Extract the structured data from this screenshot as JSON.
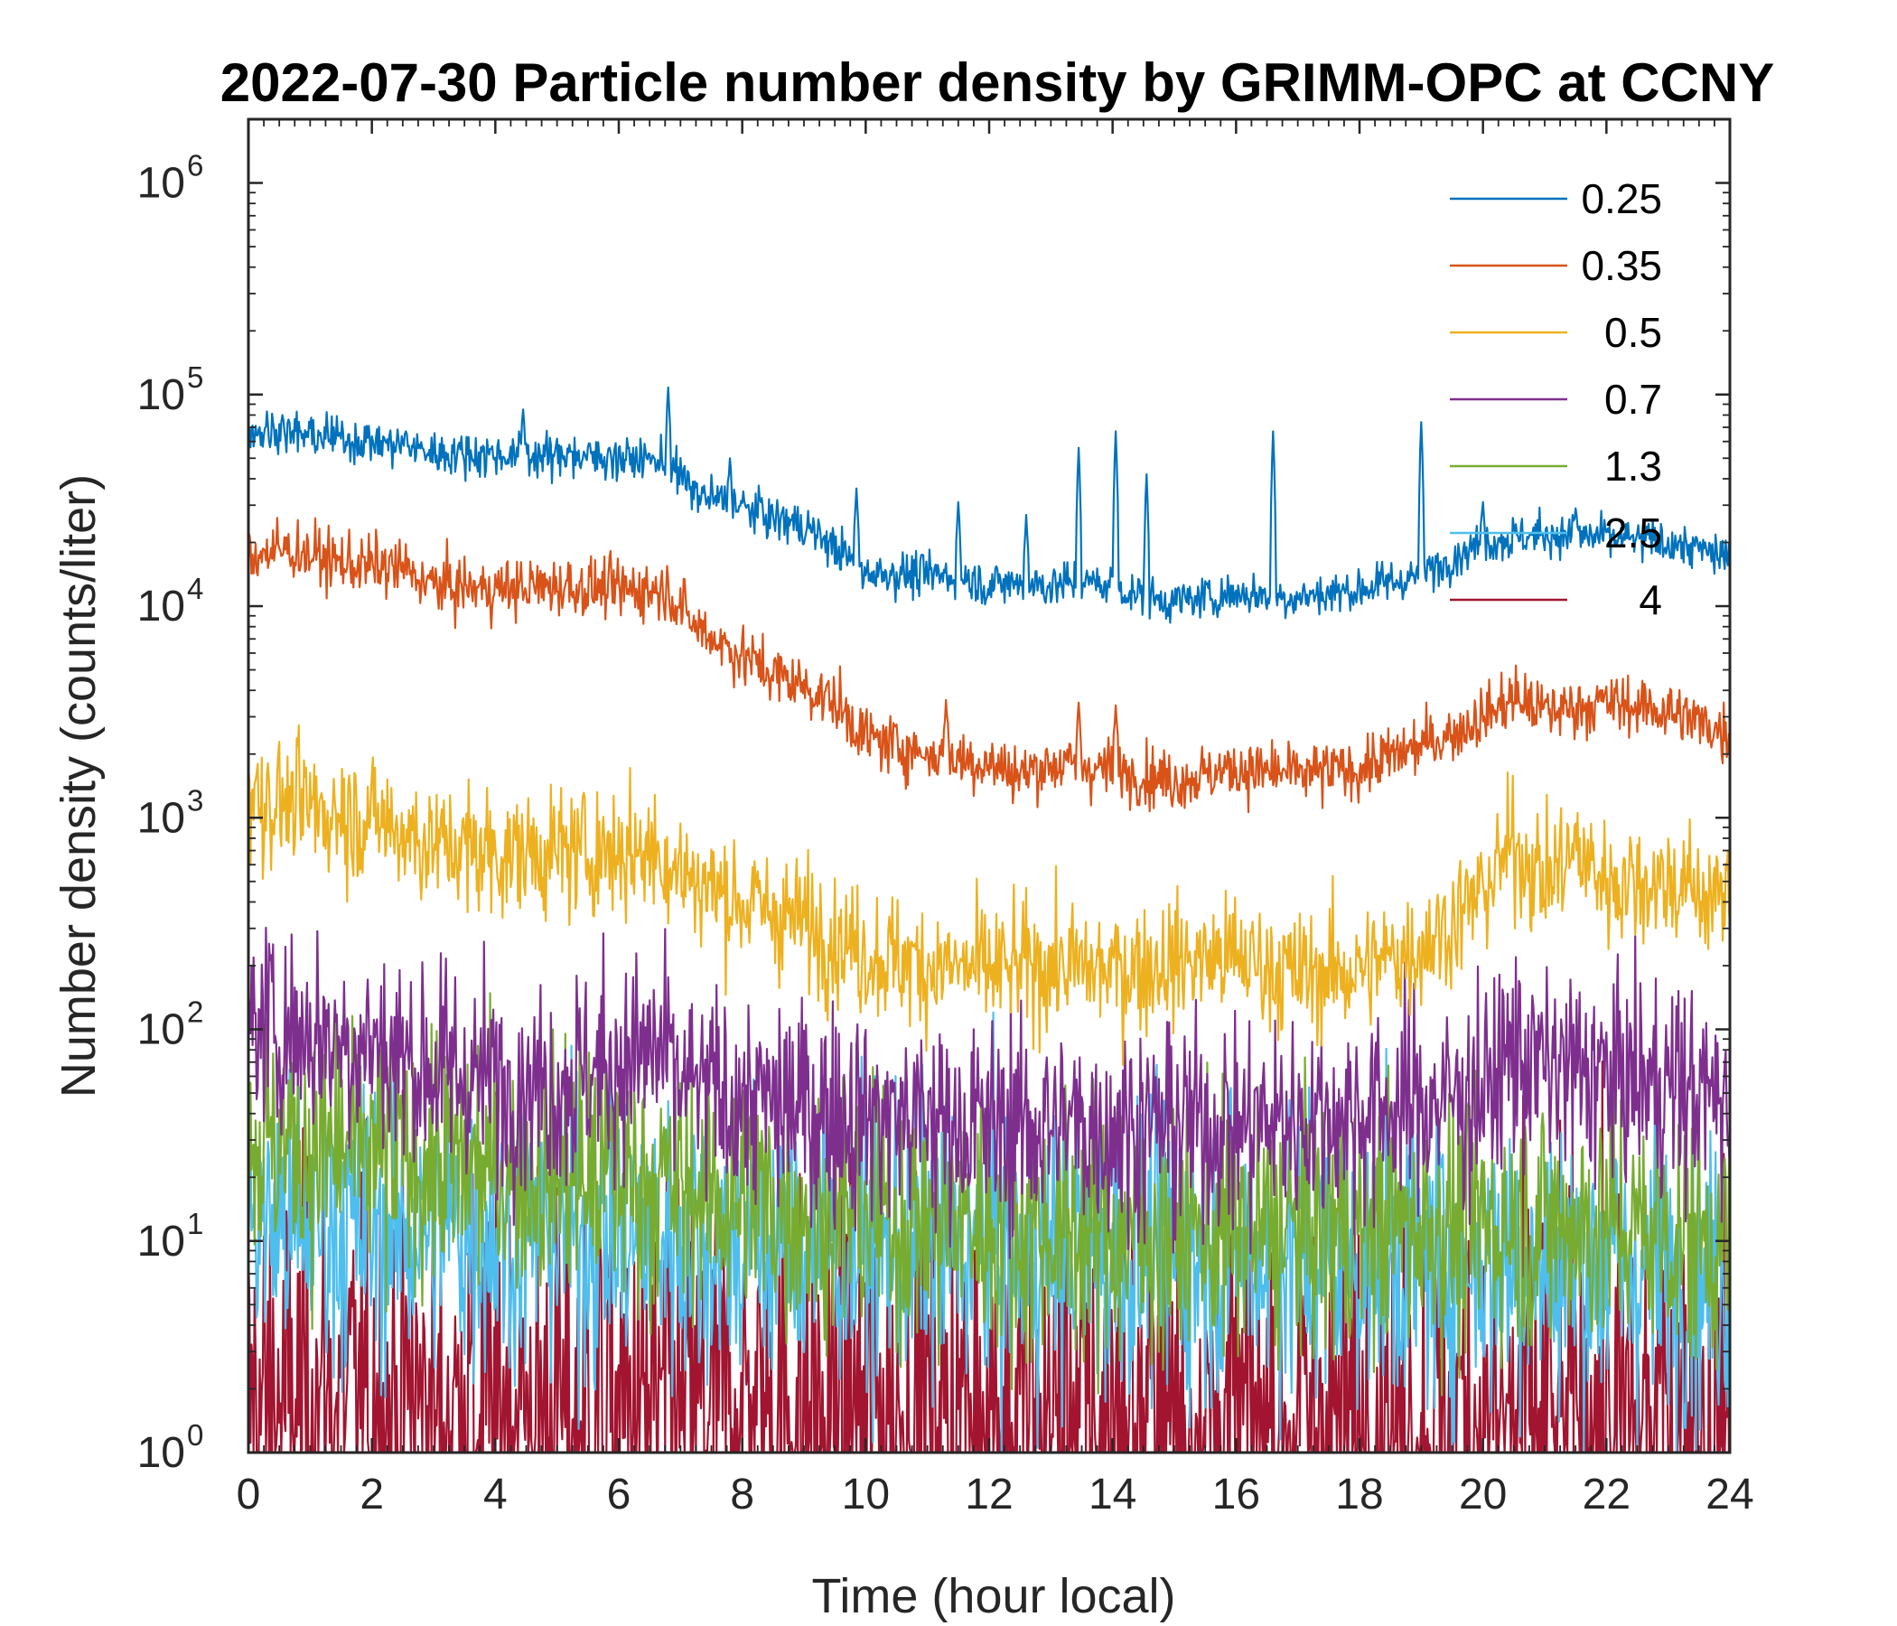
{
  "chart_data": {
    "type": "line",
    "title": "2022-07-30 Particle number density by GRIMM-OPC at CCNY",
    "xlabel": "Time (hour local)",
    "ylabel": "Number density (counts/liter)",
    "xlim": [
      0,
      24
    ],
    "ylim": [
      1,
      2000000
    ],
    "yscale": "log",
    "xticks": [
      0,
      2,
      4,
      6,
      8,
      10,
      12,
      14,
      16,
      18,
      20,
      22,
      24
    ],
    "xtick_labels": [
      "0",
      "2",
      "4",
      "6",
      "8",
      "10",
      "12",
      "14",
      "16",
      "18",
      "20",
      "22",
      "24"
    ],
    "yticks": [
      1,
      10,
      100,
      1000,
      10000,
      100000,
      1000000
    ],
    "ytick_labels": [
      {
        "base": "10",
        "exp": "0"
      },
      {
        "base": "10",
        "exp": "1"
      },
      {
        "base": "10",
        "exp": "2"
      },
      {
        "base": "10",
        "exp": "3"
      },
      {
        "base": "10",
        "exp": "4"
      },
      {
        "base": "10",
        "exp": "5"
      },
      {
        "base": "10",
        "exp": "6"
      }
    ],
    "legend_position": "top-right",
    "series": [
      {
        "name": "0.25",
        "label": "0.25",
        "color": "#0072BD",
        "x": [
          0,
          0.5,
          1,
          2,
          2.5,
          3,
          4,
          5,
          6,
          6.6,
          6.9,
          7.3,
          7.8,
          8.3,
          9,
          9.5,
          10,
          11,
          11.5,
          12,
          12.5,
          13,
          13.5,
          14,
          14.5,
          15,
          16,
          17,
          18,
          19,
          19.5,
          20,
          21,
          22,
          23,
          24
        ],
        "values": [
          68000,
          66000,
          64000,
          60000,
          57000,
          53000,
          52000,
          51000,
          50000,
          49000,
          44000,
          33000,
          31000,
          27000,
          24000,
          19000,
          14500,
          14000,
          14000,
          12500,
          13000,
          12500,
          13000,
          12500,
          11000,
          10500,
          11500,
          11000,
          12000,
          14000,
          17000,
          20000,
          22000,
          21000,
          20000,
          17000
        ],
        "noise": 0.05,
        "spikes": [
          [
            0.55,
            80000
          ],
          [
            2.55,
            67000
          ],
          [
            4.45,
            85000
          ],
          [
            5.2,
            58000
          ],
          [
            5.85,
            56000
          ],
          [
            6.8,
            108000
          ],
          [
            7.8,
            50000
          ],
          [
            8.3,
            31000
          ],
          [
            9.85,
            36000
          ],
          [
            11.5,
            31000
          ],
          [
            12.6,
            27000
          ],
          [
            13.45,
            56000
          ],
          [
            14.05,
            67000
          ],
          [
            14.55,
            42000
          ],
          [
            16.6,
            67000
          ],
          [
            19,
            74000
          ],
          [
            20,
            31000
          ],
          [
            21.5,
            29000
          ]
        ]
      },
      {
        "name": "0.35",
        "label": "0.35",
        "color": "#D95319",
        "x": [
          0,
          0.7,
          1.5,
          2,
          2.5,
          3,
          4,
          5,
          6,
          6.8,
          7.2,
          8,
          8.5,
          9,
          9.5,
          10,
          11,
          12,
          12.5,
          13,
          14,
          15,
          16,
          17,
          18,
          19,
          19.5,
          20,
          20.5,
          21,
          22,
          23,
          24
        ],
        "values": [
          17500,
          18500,
          16000,
          15500,
          15000,
          12500,
          12000,
          12500,
          12000,
          12000,
          8200,
          5800,
          4800,
          4200,
          3500,
          2400,
          2000,
          1800,
          1600,
          1800,
          1700,
          1500,
          1700,
          1600,
          1700,
          2200,
          2500,
          3000,
          3700,
          3200,
          3500,
          3200,
          2500
        ],
        "noise": 0.07,
        "spikes": [
          [
            11.3,
            3600
          ],
          [
            13.45,
            3500
          ],
          [
            14.05,
            3400
          ]
        ]
      },
      {
        "name": "0.5",
        "label": "0.5",
        "color": "#EDB120",
        "x": [
          0,
          1,
          2,
          3,
          4,
          5,
          6,
          6.6,
          7,
          8,
          9,
          10,
          11,
          12,
          13,
          14,
          15,
          16,
          17,
          18,
          19,
          19.5,
          20,
          20.5,
          21,
          21.5,
          22,
          23,
          24
        ],
        "values": [
          1300,
          1100,
          1000,
          750,
          680,
          680,
          700,
          700,
          550,
          400,
          320,
          230,
          200,
          190,
          200,
          190,
          210,
          220,
          180,
          190,
          250,
          320,
          450,
          750,
          500,
          700,
          500,
          500,
          400
        ],
        "noise": 0.15,
        "spikes": []
      },
      {
        "name": "0.7",
        "label": "0.7",
        "color": "#7E2F8E",
        "x": [
          0,
          1,
          2,
          3,
          4,
          5,
          6,
          6.6,
          7,
          8,
          10,
          12,
          14,
          16,
          18,
          19,
          20,
          20.5,
          21,
          22,
          23,
          24
        ],
        "values": [
          110,
          95,
          85,
          65,
          58,
          55,
          70,
          80,
          55,
          45,
          40,
          35,
          35,
          35,
          40,
          45,
          50,
          80,
          65,
          60,
          55,
          45
        ],
        "noise": 0.25,
        "spikes": []
      },
      {
        "name": "1.3",
        "label": "1.3",
        "color": "#77AC30",
        "x": [
          0,
          2,
          4,
          6,
          8,
          10,
          12,
          14,
          16,
          18,
          20,
          22,
          24
        ],
        "values": [
          30,
          25,
          22,
          20,
          16,
          13,
          12,
          11,
          11,
          12,
          12,
          12,
          10
        ],
        "noise": 0.3,
        "spikes": []
      },
      {
        "name": "2.5",
        "label": "2.5",
        "color": "#4DBEEE",
        "x": [
          0,
          4,
          8,
          12,
          16,
          20,
          24
        ],
        "values": [
          12,
          11,
          10,
          9,
          8.5,
          8,
          7
        ],
        "noise": 0.35,
        "spikes": []
      },
      {
        "name": "4",
        "label": "4",
        "color": "#A2142F",
        "x": [
          0,
          6,
          12,
          18,
          24
        ],
        "values": [
          1.6,
          1.5,
          1.4,
          1.3,
          1.3
        ],
        "noise": 0.55,
        "spikes": []
      }
    ]
  }
}
